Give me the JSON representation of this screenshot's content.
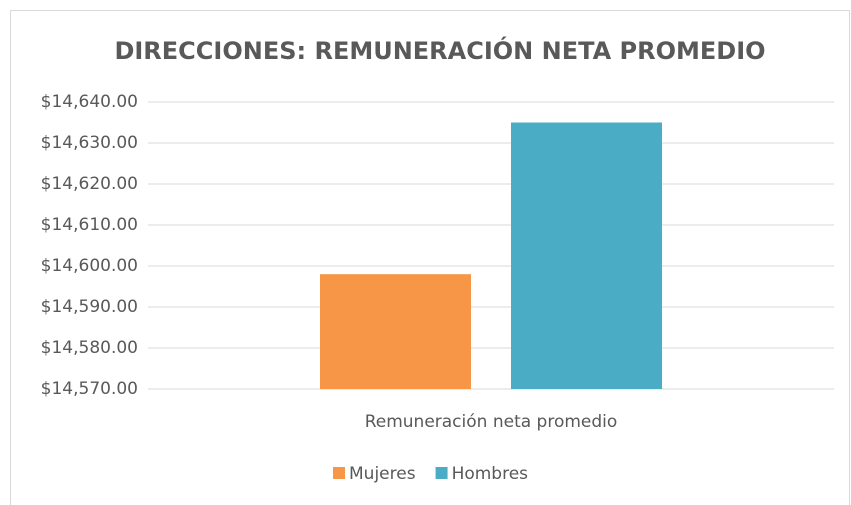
{
  "chart_data": {
    "type": "bar",
    "title": "DIRECCIONES: REMUNERACIÓN NETA PROMEDIO",
    "categories": [
      "Remuneración neta  promedio"
    ],
    "series": [
      {
        "name": "Mujeres",
        "color": "#f79646",
        "values": [
          14598
        ]
      },
      {
        "name": "Hombres",
        "color": "#4bacc6",
        "values": [
          14635
        ]
      }
    ],
    "ylim": [
      14570,
      14640
    ],
    "yticks": [
      {
        "value": 14570,
        "label": "$14,570.00"
      },
      {
        "value": 14580,
        "label": "$14,580.00"
      },
      {
        "value": 14590,
        "label": "$14,590.00"
      },
      {
        "value": 14600,
        "label": "$14,600.00"
      },
      {
        "value": 14610,
        "label": "$14,610.00"
      },
      {
        "value": 14620,
        "label": "$14,620.00"
      },
      {
        "value": 14630,
        "label": "$14,630.00"
      },
      {
        "value": 14640,
        "label": "$14,640.00"
      }
    ],
    "grid": true,
    "legend": "bottom"
  }
}
